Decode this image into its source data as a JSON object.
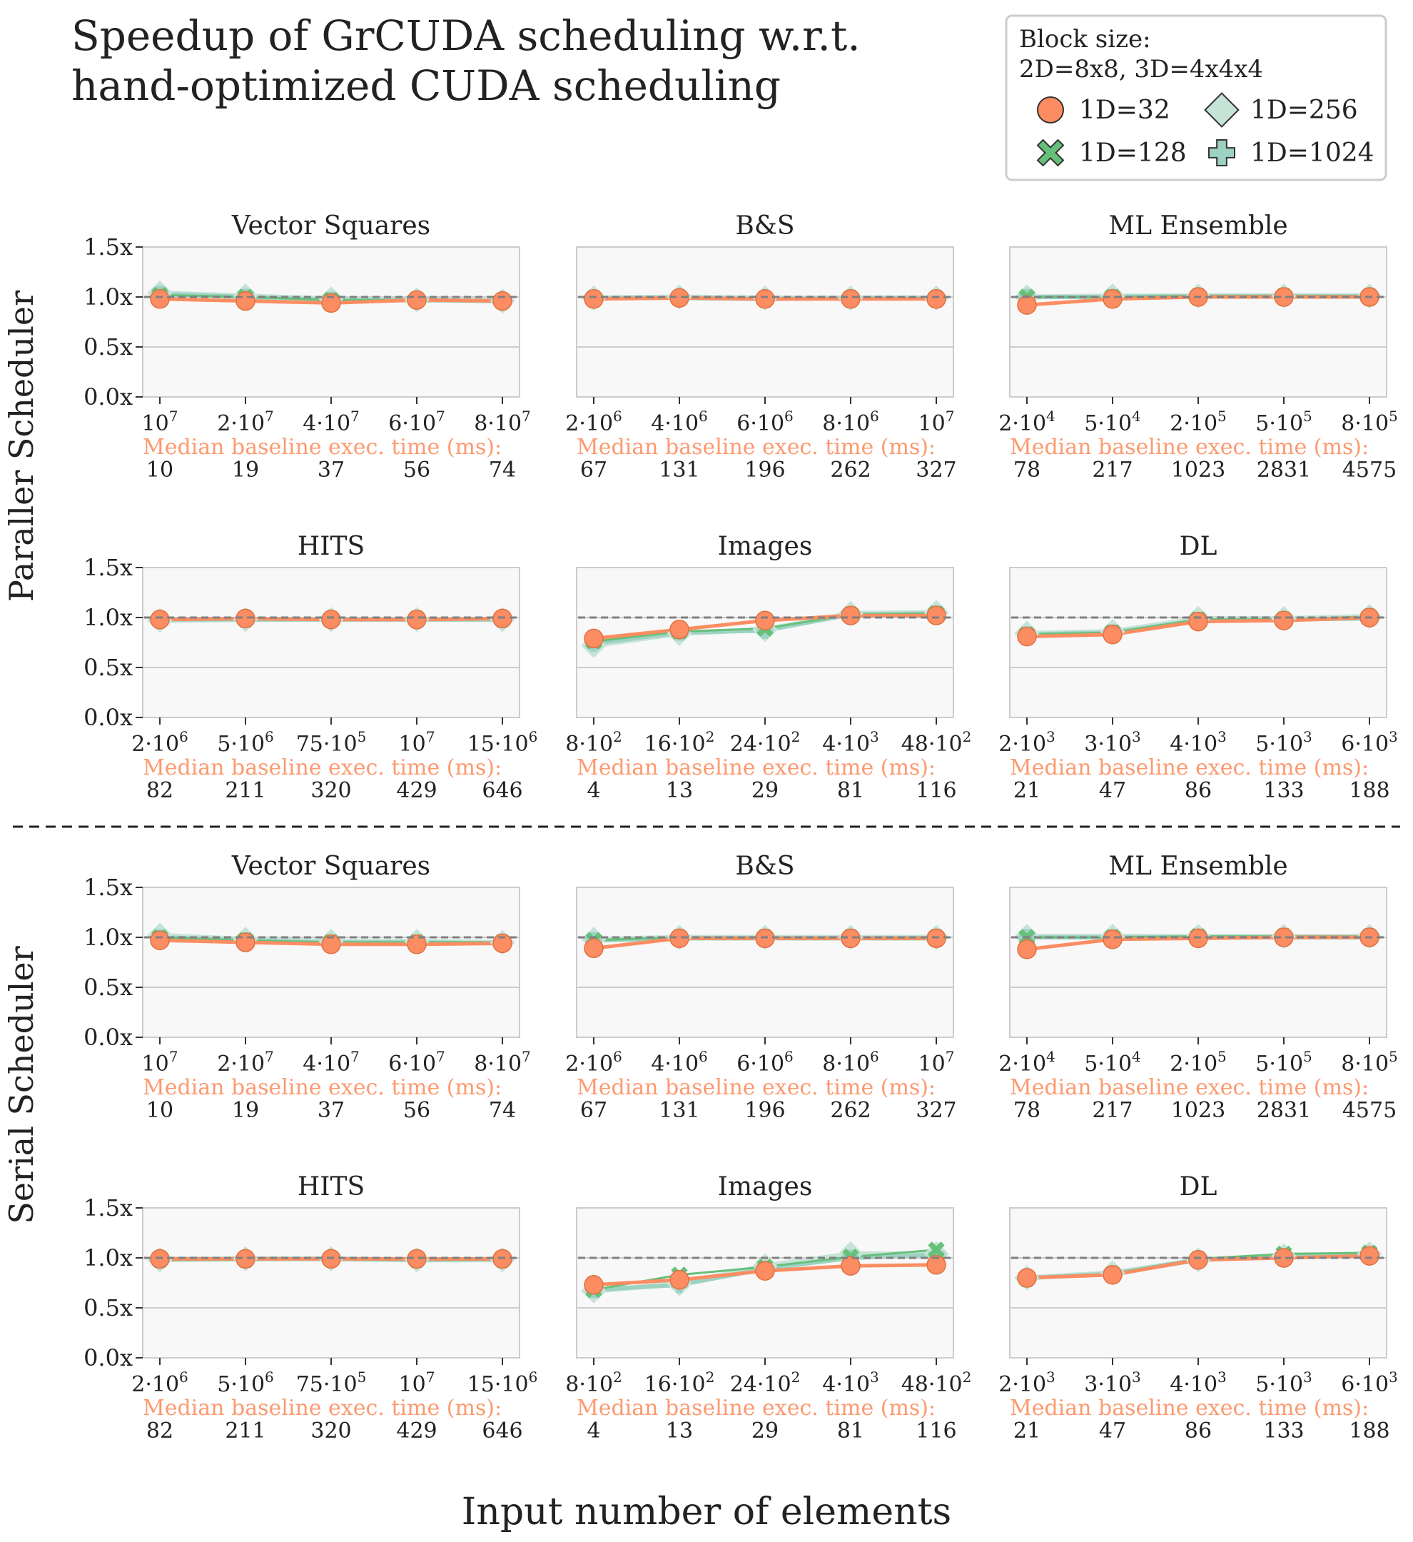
{
  "figure": {
    "title_line1": "Speedup of GrCUDA scheduling w.r.t.",
    "title_line2": "hand-optimized CUDA scheduling",
    "xlabel": "Input number of elements",
    "row_labels": [
      "Paraller Scheduler",
      "Serial Scheduler"
    ],
    "baseline_label": "Median baseline exec. time (ms):",
    "y_ticks": [
      "0.0x",
      "0.5x",
      "1.0x",
      "1.5x"
    ],
    "legend": {
      "title_line1": "Block size:",
      "title_line2": "2D=8x8, 3D=4x4x4",
      "entries": [
        {
          "label": "1D=32",
          "marker": "circle",
          "color": "#fc8d62"
        },
        {
          "label": "1D=128",
          "marker": "x",
          "color": "#66c07a"
        },
        {
          "label": "1D=256",
          "marker": "diamond",
          "color": "#c6e3d8"
        },
        {
          "label": "1D=1024",
          "marker": "plus",
          "color": "#9dd2c3"
        }
      ]
    },
    "colors": {
      "bs32": "#fc8d62",
      "bs128": "#66c07a",
      "bs256": "#c6e3d8",
      "bs1024": "#9dd2c3",
      "baseline_text": "#fc9a70",
      "panel_bg": "#f8f8f8",
      "spine": "#cccccc",
      "reference_line": "#808080"
    }
  },
  "chart_data": [
    {
      "type": "line",
      "scheduler": "Paraller Scheduler",
      "title": "Vector Squares",
      "ylim": [
        0,
        1.5
      ],
      "x_ticks": [
        [
          "10",
          "7"
        ],
        [
          "2·10",
          "7"
        ],
        [
          "4·10",
          "7"
        ],
        [
          "6·10",
          "7"
        ],
        [
          "8·10",
          "7"
        ]
      ],
      "baseline_ms": [
        "10",
        "19",
        "37",
        "56",
        "74"
      ],
      "series": [
        {
          "name": "1D=32",
          "values": [
            0.98,
            0.96,
            0.94,
            0.97,
            0.96
          ]
        },
        {
          "name": "1D=128",
          "values": [
            1.02,
            1.0,
            0.97,
            0.97,
            0.96
          ]
        },
        {
          "name": "1D=256",
          "values": [
            1.04,
            1.01,
            0.98,
            0.97,
            0.96
          ]
        },
        {
          "name": "1D=1024",
          "values": [
            1.03,
            1.0,
            0.97,
            0.97,
            0.96
          ]
        }
      ]
    },
    {
      "type": "line",
      "scheduler": "Paraller Scheduler",
      "title": "B&S",
      "ylim": [
        0,
        1.5
      ],
      "x_ticks": [
        [
          "2·10",
          "6"
        ],
        [
          "4·10",
          "6"
        ],
        [
          "6·10",
          "6"
        ],
        [
          "8·10",
          "6"
        ],
        [
          "10",
          "7"
        ]
      ],
      "baseline_ms": [
        "67",
        "131",
        "196",
        "262",
        "327"
      ],
      "series": [
        {
          "name": "1D=32",
          "values": [
            0.98,
            0.99,
            0.98,
            0.98,
            0.98
          ]
        },
        {
          "name": "1D=128",
          "values": [
            0.99,
            0.99,
            0.98,
            0.99,
            0.99
          ]
        },
        {
          "name": "1D=256",
          "values": [
            0.99,
            1.0,
            0.99,
            0.99,
            0.99
          ]
        },
        {
          "name": "1D=1024",
          "values": [
            0.99,
            0.99,
            0.98,
            0.99,
            0.99
          ]
        }
      ]
    },
    {
      "type": "line",
      "scheduler": "Paraller Scheduler",
      "title": "ML Ensemble",
      "ylim": [
        0,
        1.5
      ],
      "x_ticks": [
        [
          "2·10",
          "4"
        ],
        [
          "5·10",
          "4"
        ],
        [
          "2·10",
          "5"
        ],
        [
          "5·10",
          "5"
        ],
        [
          "8·10",
          "5"
        ]
      ],
      "baseline_ms": [
        "78",
        "217",
        "1023",
        "2831",
        "4575"
      ],
      "series": [
        {
          "name": "1D=32",
          "values": [
            0.92,
            0.98,
            1.0,
            1.0,
            1.0
          ]
        },
        {
          "name": "1D=128",
          "values": [
            1.0,
            1.0,
            1.01,
            1.01,
            1.01
          ]
        },
        {
          "name": "1D=256",
          "values": [
            1.0,
            1.01,
            1.01,
            1.01,
            1.01
          ]
        },
        {
          "name": "1D=1024",
          "values": [
            1.0,
            1.0,
            1.01,
            1.01,
            1.01
          ]
        }
      ]
    },
    {
      "type": "line",
      "scheduler": "Paraller Scheduler",
      "title": "HITS",
      "ylim": [
        0,
        1.5
      ],
      "x_ticks": [
        [
          "2·10",
          "6"
        ],
        [
          "5·10",
          "6"
        ],
        [
          "75·10",
          "5"
        ],
        [
          "10",
          "7"
        ],
        [
          "15·10",
          "6"
        ]
      ],
      "baseline_ms": [
        "82",
        "211",
        "320",
        "429",
        "646"
      ],
      "series": [
        {
          "name": "1D=32",
          "values": [
            0.98,
            0.99,
            0.98,
            0.98,
            0.99
          ]
        },
        {
          "name": "1D=128",
          "values": [
            0.98,
            0.98,
            0.98,
            0.99,
            0.98
          ]
        },
        {
          "name": "1D=256",
          "values": [
            0.97,
            0.98,
            0.98,
            0.98,
            0.98
          ]
        },
        {
          "name": "1D=1024",
          "values": [
            0.98,
            0.98,
            0.98,
            0.98,
            0.98
          ]
        }
      ]
    },
    {
      "type": "line",
      "scheduler": "Paraller Scheduler",
      "title": "Images",
      "ylim": [
        0,
        1.5
      ],
      "x_ticks": [
        [
          "8·10",
          "2"
        ],
        [
          "16·10",
          "2"
        ],
        [
          "24·10",
          "2"
        ],
        [
          "4·10",
          "3"
        ],
        [
          "48·10",
          "2"
        ]
      ],
      "baseline_ms": [
        "4",
        "13",
        "29",
        "81",
        "116"
      ],
      "series": [
        {
          "name": "1D=32",
          "values": [
            0.79,
            0.88,
            0.97,
            1.02,
            1.02
          ]
        },
        {
          "name": "1D=128",
          "values": [
            0.76,
            0.86,
            0.89,
            1.03,
            1.04
          ]
        },
        {
          "name": "1D=256",
          "values": [
            0.72,
            0.84,
            0.88,
            1.04,
            1.05
          ]
        },
        {
          "name": "1D=1024",
          "values": [
            0.74,
            0.85,
            0.87,
            1.03,
            1.04
          ]
        }
      ]
    },
    {
      "type": "line",
      "scheduler": "Paraller Scheduler",
      "title": "DL",
      "ylim": [
        0,
        1.5
      ],
      "x_ticks": [
        [
          "2·10",
          "3"
        ],
        [
          "3·10",
          "3"
        ],
        [
          "4·10",
          "3"
        ],
        [
          "5·10",
          "3"
        ],
        [
          "6·10",
          "3"
        ]
      ],
      "baseline_ms": [
        "21",
        "47",
        "86",
        "133",
        "188"
      ],
      "series": [
        {
          "name": "1D=32",
          "values": [
            0.81,
            0.83,
            0.96,
            0.97,
            1.0
          ]
        },
        {
          "name": "1D=128",
          "values": [
            0.83,
            0.85,
            0.98,
            0.98,
            1.01
          ]
        },
        {
          "name": "1D=256",
          "values": [
            0.84,
            0.86,
            0.99,
            0.99,
            1.01
          ]
        },
        {
          "name": "1D=1024",
          "values": [
            0.83,
            0.85,
            0.97,
            0.98,
            0.99
          ]
        }
      ]
    },
    {
      "type": "line",
      "scheduler": "Serial Scheduler",
      "title": "Vector Squares",
      "ylim": [
        0,
        1.5
      ],
      "x_ticks": [
        [
          "10",
          "7"
        ],
        [
          "2·10",
          "7"
        ],
        [
          "4·10",
          "7"
        ],
        [
          "6·10",
          "7"
        ],
        [
          "8·10",
          "7"
        ]
      ],
      "baseline_ms": [
        "10",
        "19",
        "37",
        "56",
        "74"
      ],
      "series": [
        {
          "name": "1D=32",
          "values": [
            0.97,
            0.95,
            0.93,
            0.93,
            0.94
          ]
        },
        {
          "name": "1D=128",
          "values": [
            1.0,
            0.97,
            0.95,
            0.95,
            0.95
          ]
        },
        {
          "name": "1D=256",
          "values": [
            1.02,
            0.98,
            0.96,
            0.96,
            0.95
          ]
        },
        {
          "name": "1D=1024",
          "values": [
            1.0,
            0.97,
            0.95,
            0.95,
            0.94
          ]
        }
      ]
    },
    {
      "type": "line",
      "scheduler": "Serial Scheduler",
      "title": "B&S",
      "ylim": [
        0,
        1.5
      ],
      "x_ticks": [
        [
          "2·10",
          "6"
        ],
        [
          "4·10",
          "6"
        ],
        [
          "6·10",
          "6"
        ],
        [
          "8·10",
          "6"
        ],
        [
          "10",
          "7"
        ]
      ],
      "baseline_ms": [
        "67",
        "131",
        "196",
        "262",
        "327"
      ],
      "series": [
        {
          "name": "1D=32",
          "values": [
            0.89,
            0.99,
            0.99,
            0.99,
            0.99
          ]
        },
        {
          "name": "1D=128",
          "values": [
            0.97,
            1.0,
            1.0,
            1.0,
            1.0
          ]
        },
        {
          "name": "1D=256",
          "values": [
            0.98,
            1.0,
            1.0,
            1.0,
            1.0
          ]
        },
        {
          "name": "1D=1024",
          "values": [
            0.97,
            0.99,
            0.99,
            0.99,
            0.99
          ]
        }
      ]
    },
    {
      "type": "line",
      "scheduler": "Serial Scheduler",
      "title": "ML Ensemble",
      "ylim": [
        0,
        1.5
      ],
      "x_ticks": [
        [
          "2·10",
          "4"
        ],
        [
          "5·10",
          "4"
        ],
        [
          "2·10",
          "5"
        ],
        [
          "5·10",
          "5"
        ],
        [
          "8·10",
          "5"
        ]
      ],
      "baseline_ms": [
        "78",
        "217",
        "1023",
        "2831",
        "4575"
      ],
      "series": [
        {
          "name": "1D=32",
          "values": [
            0.88,
            0.98,
            0.99,
            1.0,
            1.0
          ]
        },
        {
          "name": "1D=128",
          "values": [
            1.0,
            1.0,
            1.01,
            1.01,
            1.01
          ]
        },
        {
          "name": "1D=256",
          "values": [
            1.01,
            1.01,
            1.01,
            1.01,
            1.01
          ]
        },
        {
          "name": "1D=1024",
          "values": [
            1.0,
            1.0,
            1.0,
            1.0,
            1.0
          ]
        }
      ]
    },
    {
      "type": "line",
      "scheduler": "Serial Scheduler",
      "title": "HITS",
      "ylim": [
        0,
        1.5
      ],
      "x_ticks": [
        [
          "2·10",
          "6"
        ],
        [
          "5·10",
          "6"
        ],
        [
          "75·10",
          "5"
        ],
        [
          "10",
          "7"
        ],
        [
          "15·10",
          "6"
        ]
      ],
      "baseline_ms": [
        "82",
        "211",
        "320",
        "429",
        "646"
      ],
      "series": [
        {
          "name": "1D=32",
          "values": [
            0.99,
            0.99,
            0.99,
            0.99,
            0.99
          ]
        },
        {
          "name": "1D=128",
          "values": [
            0.98,
            0.98,
            0.99,
            0.98,
            0.98
          ]
        },
        {
          "name": "1D=256",
          "values": [
            0.98,
            0.99,
            0.99,
            0.98,
            0.98
          ]
        },
        {
          "name": "1D=1024",
          "values": [
            0.99,
            0.99,
            0.99,
            0.98,
            0.99
          ]
        }
      ]
    },
    {
      "type": "line",
      "scheduler": "Serial Scheduler",
      "title": "Images",
      "ylim": [
        0,
        1.5
      ],
      "x_ticks": [
        [
          "8·10",
          "2"
        ],
        [
          "16·10",
          "2"
        ],
        [
          "24·10",
          "2"
        ],
        [
          "4·10",
          "3"
        ],
        [
          "48·10",
          "2"
        ]
      ],
      "baseline_ms": [
        "4",
        "13",
        "29",
        "81",
        "116"
      ],
      "series": [
        {
          "name": "1D=32",
          "values": [
            0.73,
            0.78,
            0.87,
            0.92,
            0.93
          ]
        },
        {
          "name": "1D=128",
          "values": [
            0.68,
            0.83,
            0.91,
            1.01,
            1.08
          ]
        },
        {
          "name": "1D=256",
          "values": [
            0.67,
            0.74,
            0.92,
            1.04,
            1.04
          ]
        },
        {
          "name": "1D=1024",
          "values": [
            0.68,
            0.73,
            0.89,
            1.0,
            1.03
          ]
        }
      ]
    },
    {
      "type": "line",
      "scheduler": "Serial Scheduler",
      "title": "DL",
      "ylim": [
        0,
        1.5
      ],
      "x_ticks": [
        [
          "2·10",
          "3"
        ],
        [
          "3·10",
          "3"
        ],
        [
          "4·10",
          "3"
        ],
        [
          "5·10",
          "3"
        ],
        [
          "6·10",
          "3"
        ]
      ],
      "baseline_ms": [
        "21",
        "47",
        "86",
        "133",
        "188"
      ],
      "series": [
        {
          "name": "1D=32",
          "values": [
            0.8,
            0.83,
            0.98,
            1.0,
            1.02
          ]
        },
        {
          "name": "1D=128",
          "values": [
            0.79,
            0.84,
            0.99,
            1.04,
            1.05
          ]
        },
        {
          "name": "1D=256",
          "values": [
            0.8,
            0.85,
            0.98,
            1.02,
            1.04
          ]
        },
        {
          "name": "1D=1024",
          "values": [
            0.8,
            0.84,
            0.98,
            1.01,
            1.03
          ]
        }
      ]
    }
  ]
}
